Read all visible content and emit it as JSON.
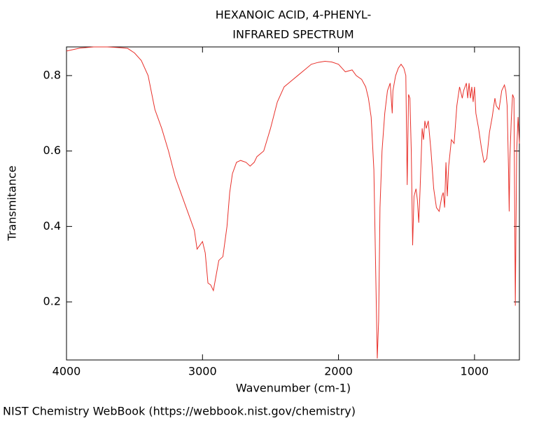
{
  "chart_data": {
    "type": "line",
    "title": "HEXANOIC ACID, 4-PHENYL-",
    "subtitle": "INFRARED SPECTRUM",
    "x_label": "Wavenumber (cm-1)",
    "y_label": "Transmitance",
    "footer": "NIST Chemistry WebBook (https://webbook.nist.gov/chemistry)",
    "color": "#e8302a",
    "xlim": [
      4000,
      670
    ],
    "xticks": [
      4000,
      3000,
      2000,
      1000
    ],
    "ylim": [
      0.046,
      0.876
    ],
    "yticks": [
      0.2,
      0.4,
      0.6,
      0.8
    ],
    "x": [
      4000,
      3900,
      3800,
      3700,
      3600,
      3550,
      3500,
      3450,
      3400,
      3350,
      3300,
      3250,
      3200,
      3150,
      3100,
      3060,
      3040,
      3020,
      3000,
      2980,
      2960,
      2940,
      2920,
      2900,
      2880,
      2850,
      2820,
      2800,
      2780,
      2750,
      2720,
      2680,
      2650,
      2620,
      2600,
      2550,
      2500,
      2450,
      2400,
      2350,
      2300,
      2250,
      2200,
      2150,
      2100,
      2050,
      2000,
      1950,
      1900,
      1870,
      1830,
      1800,
      1780,
      1760,
      1740,
      1725,
      1715,
      1705,
      1695,
      1680,
      1660,
      1640,
      1620,
      1605,
      1600,
      1580,
      1560,
      1540,
      1520,
      1505,
      1495,
      1485,
      1475,
      1465,
      1455,
      1445,
      1430,
      1420,
      1410,
      1400,
      1385,
      1375,
      1365,
      1355,
      1340,
      1320,
      1300,
      1280,
      1260,
      1240,
      1230,
      1220,
      1210,
      1200,
      1190,
      1170,
      1150,
      1130,
      1110,
      1090,
      1080,
      1060,
      1050,
      1040,
      1030,
      1020,
      1010,
      1000,
      990,
      970,
      950,
      930,
      910,
      890,
      870,
      850,
      840,
      820,
      800,
      780,
      770,
      760,
      750,
      745,
      740,
      730,
      720,
      710,
      700,
      695,
      690,
      680,
      670
    ],
    "values": [
      0.865,
      0.873,
      0.876,
      0.876,
      0.874,
      0.872,
      0.86,
      0.84,
      0.8,
      0.71,
      0.66,
      0.6,
      0.53,
      0.48,
      0.43,
      0.39,
      0.34,
      0.35,
      0.36,
      0.33,
      0.25,
      0.245,
      0.23,
      0.27,
      0.31,
      0.32,
      0.4,
      0.49,
      0.54,
      0.57,
      0.575,
      0.57,
      0.56,
      0.57,
      0.585,
      0.6,
      0.66,
      0.73,
      0.77,
      0.785,
      0.8,
      0.815,
      0.83,
      0.835,
      0.838,
      0.836,
      0.83,
      0.81,
      0.815,
      0.8,
      0.79,
      0.77,
      0.74,
      0.69,
      0.55,
      0.25,
      0.05,
      0.15,
      0.45,
      0.6,
      0.7,
      0.76,
      0.78,
      0.7,
      0.76,
      0.8,
      0.82,
      0.83,
      0.82,
      0.8,
      0.51,
      0.75,
      0.74,
      0.6,
      0.35,
      0.48,
      0.5,
      0.47,
      0.41,
      0.5,
      0.66,
      0.63,
      0.68,
      0.66,
      0.68,
      0.6,
      0.5,
      0.45,
      0.44,
      0.48,
      0.49,
      0.45,
      0.57,
      0.48,
      0.56,
      0.63,
      0.62,
      0.72,
      0.77,
      0.74,
      0.76,
      0.78,
      0.74,
      0.78,
      0.74,
      0.77,
      0.73,
      0.77,
      0.7,
      0.66,
      0.61,
      0.57,
      0.58,
      0.65,
      0.69,
      0.74,
      0.72,
      0.71,
      0.76,
      0.775,
      0.76,
      0.72,
      0.55,
      0.44,
      0.58,
      0.68,
      0.75,
      0.74,
      0.19,
      0.4,
      0.6,
      0.69,
      0.62
    ]
  }
}
